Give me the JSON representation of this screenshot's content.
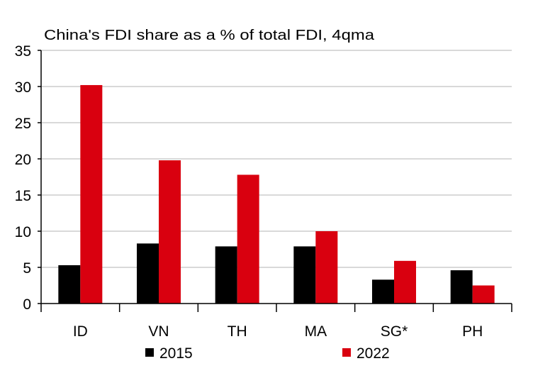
{
  "chart_data": {
    "type": "bar",
    "title": "China's FDI share as a % of total  FDI, 4qma",
    "xlabel": "",
    "ylabel": "",
    "categories": [
      "ID",
      "VN",
      "TH",
      "MA",
      "SG*",
      "PH"
    ],
    "series": [
      {
        "name": "2015",
        "color": "#000000",
        "values": [
          5.3,
          8.3,
          7.9,
          7.9,
          3.3,
          4.6
        ]
      },
      {
        "name": "2022",
        "color": "#d9000f",
        "values": [
          30.2,
          19.8,
          17.8,
          10.0,
          5.9,
          2.5
        ]
      }
    ],
    "ylim": [
      0,
      35
    ],
    "yticks": [
      0,
      5,
      10,
      15,
      20,
      25,
      30,
      35
    ],
    "grid": true,
    "legend_placement": "bottom"
  }
}
